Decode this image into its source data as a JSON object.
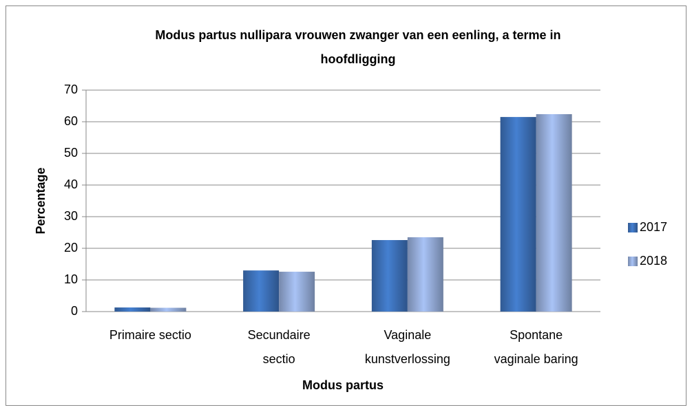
{
  "chart_data": {
    "type": "bar",
    "title": "Modus partus nullipara vrouwen zwanger van een eenling, a terme in\nhoofdligging",
    "x_label": "Modus partus",
    "y_label": "Percentage",
    "categories": [
      "Primaire sectio",
      "Secundaire\nsectio",
      "Vaginale\nkunstverlossing",
      "Spontane\nvaginale baring"
    ],
    "series": [
      {
        "name": "2017",
        "color": "#3c6fb6",
        "values": [
          1.3,
          13.0,
          22.6,
          61.5
        ]
      },
      {
        "name": "2018",
        "color": "#93aad6",
        "values": [
          1.2,
          12.6,
          23.5,
          62.4
        ]
      }
    ],
    "ylim": [
      0,
      70
    ],
    "yticks": [
      0,
      10,
      20,
      30,
      40,
      50,
      60,
      70
    ],
    "grid": true,
    "legend": "right"
  }
}
